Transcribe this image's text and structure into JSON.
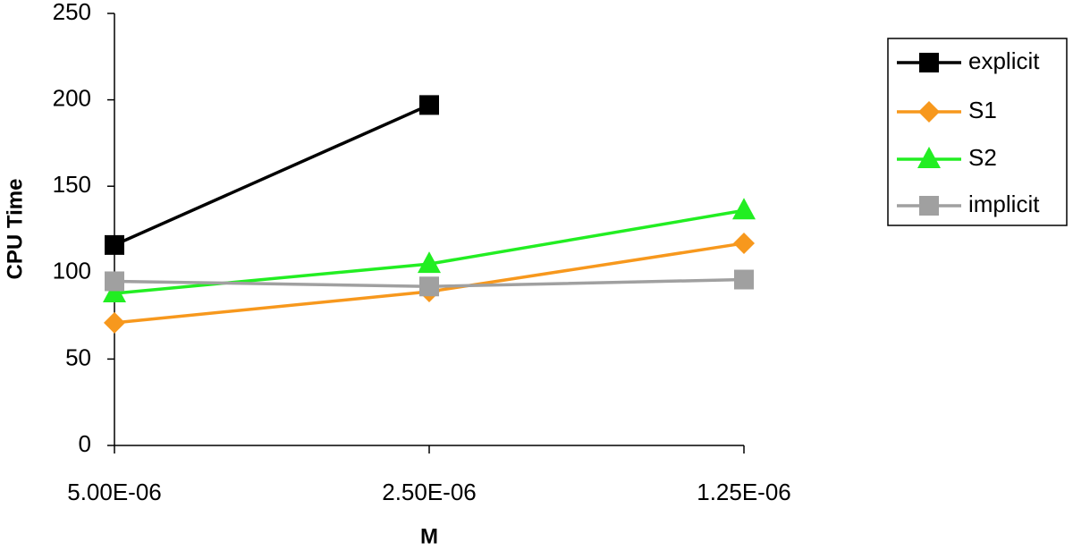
{
  "chart_data": {
    "type": "line",
    "x_label": "M",
    "y_label": "CPU Time",
    "categories": [
      "5.00E-06",
      "2.50E-06",
      "1.25E-06"
    ],
    "series": [
      {
        "name": "explicit",
        "color": "#000000",
        "marker": "square",
        "values": [
          116,
          197,
          null
        ]
      },
      {
        "name": "S1",
        "color": "#f7981d",
        "marker": "diamond",
        "values": [
          71,
          89,
          117
        ]
      },
      {
        "name": "S2",
        "color": "#22ee22",
        "marker": "triangle",
        "values": [
          88,
          105,
          136
        ]
      },
      {
        "name": "implicit",
        "color": "#a0a0a0",
        "marker": "square",
        "values": [
          95,
          92,
          96
        ]
      }
    ],
    "ylim": [
      0,
      250
    ],
    "yticks": [
      0,
      50,
      100,
      150,
      200,
      250
    ],
    "grid": false,
    "legend": "right"
  }
}
